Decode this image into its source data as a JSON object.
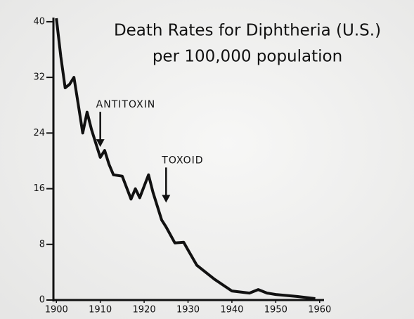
{
  "chart_data": {
    "type": "line",
    "title": "Death Rates for Diphtheria (U.S.)",
    "subtitle": "per 100,000 population",
    "x": [
      1900,
      1901,
      1902,
      1903,
      1904,
      1905,
      1906,
      1907,
      1908,
      1909,
      1910,
      1911,
      1912,
      1913,
      1915,
      1917,
      1918,
      1919,
      1921,
      1922,
      1924,
      1925,
      1927,
      1929,
      1930,
      1932,
      1936,
      1940,
      1944,
      1946,
      1948,
      1950,
      1955,
      1959
    ],
    "series": [
      {
        "name": "Death rate",
        "color": "#111111",
        "values": [
          40.5,
          35,
          30.5,
          31,
          32,
          28,
          24,
          27,
          24.5,
          22.5,
          20.5,
          21.5,
          19.5,
          18,
          17.8,
          14.5,
          16,
          14.7,
          18,
          15.5,
          11.5,
          10.5,
          8.2,
          8.3,
          7.2,
          5,
          3,
          1.3,
          1,
          1.5,
          1,
          0.8,
          0.5,
          0.2
        ]
      }
    ],
    "annotations": [
      {
        "text": "ANTITOXIN",
        "x": 1910,
        "y": 22
      },
      {
        "text": "TOXOID",
        "x": 1925,
        "y": 14
      }
    ],
    "xlim": [
      1899,
      1961
    ],
    "ylim": [
      0,
      41
    ],
    "xticks": [
      1900,
      1910,
      1920,
      1930,
      1940,
      1950,
      1960
    ],
    "yticks": [
      0,
      8,
      16,
      24,
      32,
      40
    ]
  }
}
